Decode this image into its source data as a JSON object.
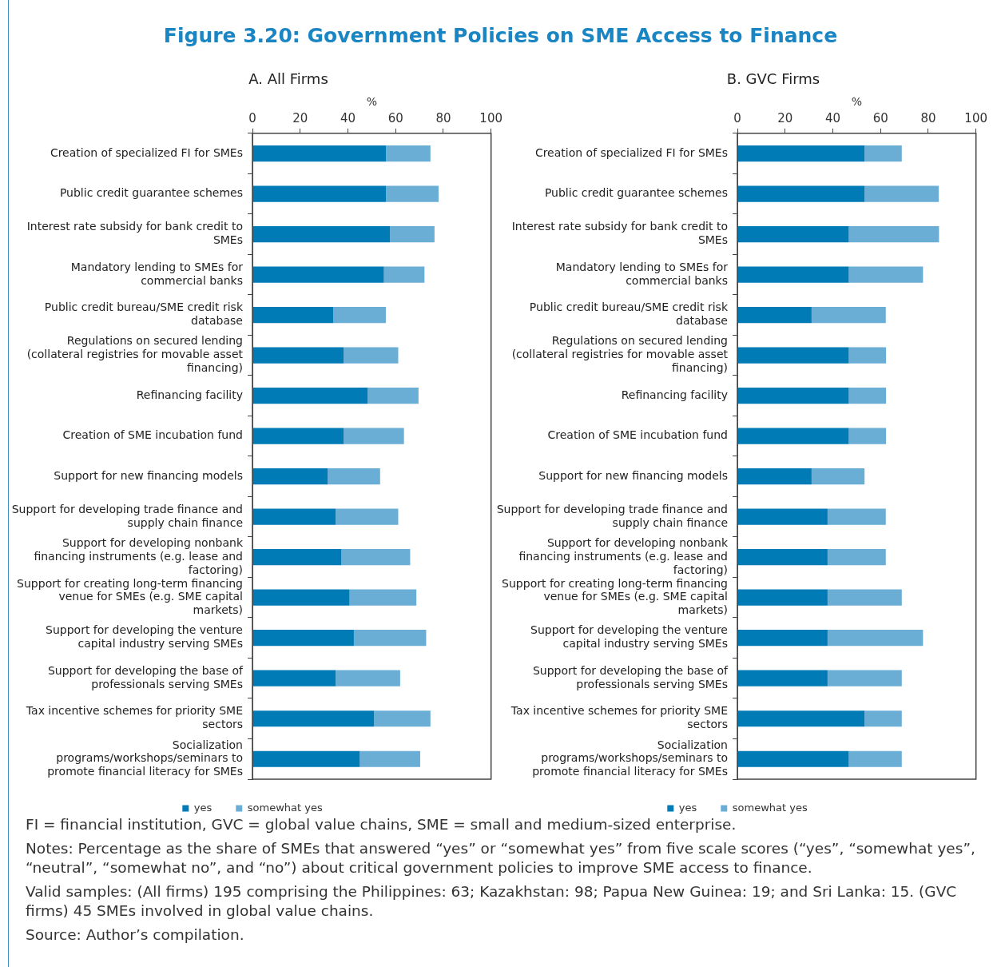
{
  "chart_data": [
    {
      "type": "bar",
      "orientation": "horizontal",
      "stacked": true,
      "title": "Figure 3.20: Government Policies on SME Access to Finance",
      "subtitle": "A. All Firms",
      "xlabel": "%",
      "legend": "bottom",
      "grid": false,
      "categories": [
        "Creation of specialized FI for SMEs",
        "Public credit guarantee schemes",
        "Interest rate subsidy for bank credit to SMEs",
        "Mandatory lending to SMEs for commercial banks",
        "Public credit bureau/SME credit risk database",
        "Regulations on secured lending (collateral registries for movable asset financing)",
        "Refinancing facility",
        "Creation of SME incubation fund",
        "Support for new financing models",
        "Support for developing trade finance and supply chain finance",
        "Support for developing nonbank financing instruments (e.g. lease and factoring)",
        "Support for creating long-term financing venue for SMEs (e.g. SME capital markets)",
        "Support for developing the venture capital industry serving SMEs",
        "Support for developing the base of professionals serving SMEs",
        "Tax incentive schemes for priority SME sectors",
        "Socialization programs/workshops/seminars to promote financial literacy for SMEs"
      ],
      "series": [
        {
          "name": "yes",
          "color": "#007bb6",
          "values": [
            56,
            56,
            57.6,
            55.1,
            33.9,
            38.2,
            48.3,
            38.2,
            31.5,
            34.9,
            37.3,
            40.7,
            42.5,
            34.9,
            51,
            45
          ]
        },
        {
          "name": "somewhat yes",
          "color": "#6aaed6",
          "values": [
            18.6,
            22,
            18.7,
            17,
            22,
            22.9,
            21.3,
            25.3,
            22,
            26.2,
            28.8,
            28,
            30.3,
            27,
            23.6,
            25.3
          ]
        }
      ],
      "xlim": [
        0,
        100
      ],
      "xticks": [
        0,
        20,
        40,
        60,
        80,
        100
      ],
      "annotations": [
        "FI = financial institution, GVC = global value chains, SME = small and medium-sized enterprise.",
        "Notes: Percentage as the share of SMEs that answered “yes” or “somewhat yes” from five scale scores (“yes”, “somewhat yes”, “neutral”, “somewhat no”, and “no”) about critical government policies to improve SME access to finance.",
        "Valid samples: (All firms) 195 comprising the Philippines: 63; Kazakhstan: 98; Papua New Guinea: 19; and Sri Lanka: 15. (GVC firms) 45 SMEs involved in global value chains.",
        "Source: Author’s compilation."
      ]
    },
    {
      "type": "bar",
      "orientation": "horizontal",
      "stacked": true,
      "subtitle": "B. GVC Firms",
      "xlabel": "%",
      "legend": "bottom",
      "grid": false,
      "categories": [
        "Creation of specialized FI for SMEs",
        "Public credit guarantee schemes",
        "Interest rate subsidy for bank credit to SMEs",
        "Mandatory lending to SMEs for commercial banks",
        "Public credit bureau/SME credit risk database",
        "Regulations on secured lending (collateral registries for movable asset financing)",
        "Refinancing facility",
        "Creation of SME incubation fund",
        "Support for new financing models",
        "Support for developing trade finance and supply chain finance",
        "Support for developing nonbank financing instruments (e.g. lease and factoring)",
        "Support for creating long-term financing venue for SMEs (e.g. SME capital markets)",
        "Support for developing the venture capital industry serving SMEs",
        "Support for developing the base of professionals serving SMEs",
        "Tax incentive schemes for priority SME sectors",
        "Socialization programs/workshops/seminars to promote financial literacy for SMEs"
      ],
      "series": [
        {
          "name": "yes",
          "color": "#007bb6",
          "values": [
            53.3,
            53.3,
            46.7,
            46.7,
            31.1,
            46.7,
            46.7,
            46.7,
            31.1,
            37.8,
            37.8,
            37.8,
            37.8,
            37.8,
            53.3,
            46.7
          ]
        },
        {
          "name": "somewhat yes",
          "color": "#6aaed6",
          "values": [
            15.6,
            31.1,
            37.8,
            31.1,
            31.1,
            15.6,
            15.6,
            15.6,
            22.2,
            24.4,
            24.4,
            31.1,
            40,
            31.1,
            15.6,
            22.2
          ]
        }
      ],
      "xlim": [
        0,
        100
      ],
      "xticks": [
        0,
        20,
        40,
        60,
        80,
        100
      ]
    }
  ]
}
